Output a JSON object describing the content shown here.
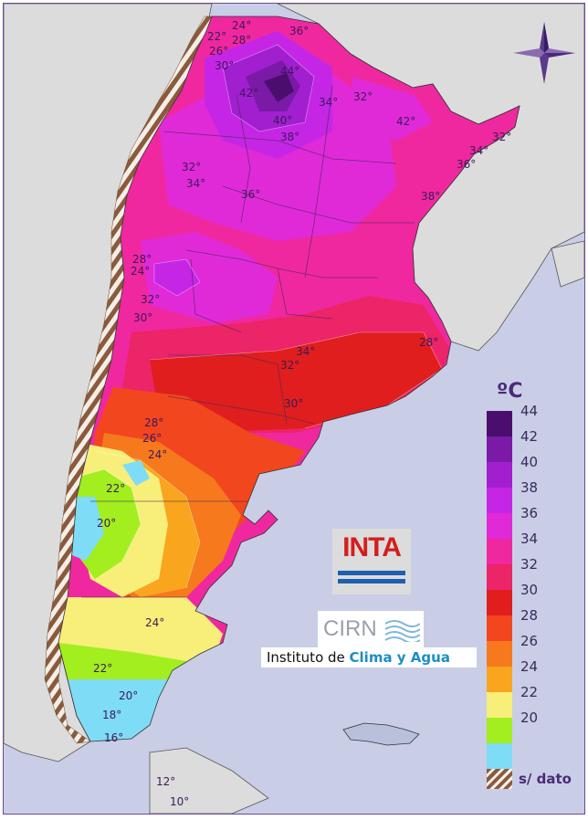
{
  "map": {
    "temperature_labels": [
      {
        "text": "24°"
      },
      {
        "text": "22°"
      },
      {
        "text": "28°"
      },
      {
        "text": "26°"
      },
      {
        "text": "30°"
      },
      {
        "text": "36°"
      },
      {
        "text": "44°"
      },
      {
        "text": "42°"
      },
      {
        "text": "34°"
      },
      {
        "text": "32°"
      },
      {
        "text": "40°"
      },
      {
        "text": "42°"
      },
      {
        "text": "38°"
      },
      {
        "text": "32°"
      },
      {
        "text": "34°"
      },
      {
        "text": "36°"
      },
      {
        "text": "32°"
      },
      {
        "text": "34°"
      },
      {
        "text": "36°"
      },
      {
        "text": "38°"
      },
      {
        "text": "28°"
      },
      {
        "text": "24°"
      },
      {
        "text": "32°"
      },
      {
        "text": "30°"
      },
      {
        "text": "28°"
      },
      {
        "text": "34°"
      },
      {
        "text": "32°"
      },
      {
        "text": "30°"
      },
      {
        "text": "28°"
      },
      {
        "text": "26°"
      },
      {
        "text": "24°"
      },
      {
        "text": "22°"
      },
      {
        "text": "20°"
      },
      {
        "text": "24°"
      },
      {
        "text": "22°"
      },
      {
        "text": "20°"
      },
      {
        "text": "18°"
      },
      {
        "text": "16°"
      },
      {
        "text": "12°"
      },
      {
        "text": "10°"
      }
    ]
  },
  "legend": {
    "unit": "ºC",
    "items": [
      {
        "value": "44",
        "color": "#4a0f6e"
      },
      {
        "value": "42",
        "color": "#7a1aa6"
      },
      {
        "value": "40",
        "color": "#a21fd0"
      },
      {
        "value": "38",
        "color": "#c526e6"
      },
      {
        "value": "36",
        "color": "#e02ad8"
      },
      {
        "value": "34",
        "color": "#f0289f"
      },
      {
        "value": "32",
        "color": "#ec2468"
      },
      {
        "value": "30",
        "color": "#e01e1e"
      },
      {
        "value": "28",
        "color": "#f2461e"
      },
      {
        "value": "26",
        "color": "#f7791e"
      },
      {
        "value": "24",
        "color": "#f9a51e"
      },
      {
        "value": "22",
        "color": "#f8ee7a"
      },
      {
        "value": "20",
        "color": "#a2ee1e"
      },
      {
        "value": "",
        "color": "#7fdcf6"
      }
    ],
    "no_data_label": "s/ dato"
  },
  "logos": {
    "inta": "INTA",
    "cirn": "CIRN",
    "institute_prefix": "Instituto de ",
    "institute_highlight": "Clima y Agua"
  }
}
